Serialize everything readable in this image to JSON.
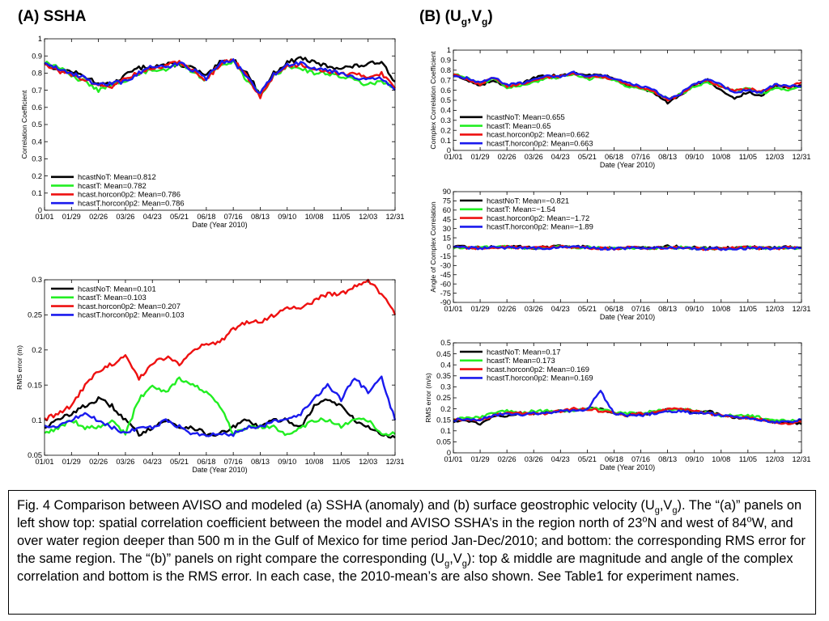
{
  "headings": {
    "a": {
      "text": "(A) SSHA"
    },
    "b": {
      "prefix": "(B) (U",
      "sub1": "g",
      "mid": ",V",
      "sub2": "g",
      "suffix": ")"
    }
  },
  "months": [
    "01/01",
    "01/29",
    "02/26",
    "03/26",
    "04/23",
    "05/21",
    "06/18",
    "07/16",
    "08/13",
    "09/10",
    "10/08",
    "11/05",
    "12/03",
    "12/31"
  ],
  "series_colors": {
    "hcastNoT": "#000000",
    "hcastT": "#22ee22",
    "hcastT.horcon0p2": "#ee1111",
    "hcast.horcon0p2": "#ee1111",
    "hcastT.horcon0p2_blue": "#1a1aee"
  },
  "chart_data": [
    {
      "id": "ssha_corr",
      "type": "line",
      "xlabel": "Date (Year 2010)",
      "ylabel": "Correlation Coefficient",
      "ylim": [
        0,
        1
      ],
      "yticks": [
        "0",
        "0.1",
        "0.2",
        "0.3",
        "0.4",
        "0.5",
        "0.6",
        "0.7",
        "0.8",
        "0.9",
        "1"
      ],
      "legend_position": "bottom-left",
      "x": [
        "01/01",
        "01/15",
        "01/29",
        "02/12",
        "02/26",
        "03/12",
        "03/26",
        "04/09",
        "04/23",
        "05/07",
        "05/21",
        "06/04",
        "06/18",
        "07/02",
        "07/16",
        "07/30",
        "08/13",
        "08/27",
        "09/10",
        "09/24",
        "10/08",
        "10/22",
        "11/05",
        "11/19",
        "12/03",
        "12/17",
        "12/31"
      ],
      "series": [
        {
          "name": "hcastNoT: Mean=0.812",
          "color": "#000000",
          "values": [
            0.86,
            0.82,
            0.81,
            0.78,
            0.74,
            0.73,
            0.79,
            0.83,
            0.84,
            0.85,
            0.85,
            0.83,
            0.78,
            0.86,
            0.88,
            0.8,
            0.68,
            0.8,
            0.86,
            0.89,
            0.86,
            0.84,
            0.83,
            0.84,
            0.85,
            0.87,
            0.75
          ]
        },
        {
          "name": "hcastT: Mean=0.782",
          "color": "#22ee22",
          "values": [
            0.86,
            0.84,
            0.78,
            0.75,
            0.7,
            0.73,
            0.76,
            0.79,
            0.82,
            0.81,
            0.86,
            0.81,
            0.76,
            0.85,
            0.87,
            0.76,
            0.67,
            0.78,
            0.84,
            0.83,
            0.8,
            0.8,
            0.78,
            0.76,
            0.73,
            0.75,
            0.72
          ]
        },
        {
          "name": "hcast.horcon0p2: Mean=0.786",
          "color": "#ee1111",
          "values": [
            0.86,
            0.81,
            0.79,
            0.76,
            0.73,
            0.72,
            0.77,
            0.8,
            0.83,
            0.84,
            0.87,
            0.81,
            0.76,
            0.85,
            0.88,
            0.78,
            0.66,
            0.79,
            0.84,
            0.85,
            0.83,
            0.81,
            0.8,
            0.79,
            0.78,
            0.8,
            0.71
          ]
        },
        {
          "name": "hcastT.horcon0p2: Mean=0.786",
          "color": "#1a1aee",
          "values": [
            0.86,
            0.83,
            0.8,
            0.77,
            0.73,
            0.74,
            0.75,
            0.8,
            0.84,
            0.83,
            0.86,
            0.82,
            0.77,
            0.86,
            0.87,
            0.78,
            0.68,
            0.79,
            0.85,
            0.86,
            0.83,
            0.82,
            0.8,
            0.78,
            0.76,
            0.77,
            0.7
          ]
        }
      ]
    },
    {
      "id": "ssha_rms",
      "type": "line",
      "xlabel": "Date (Year 2010)",
      "ylabel": "RMS error (m)",
      "ylim": [
        0.05,
        0.3
      ],
      "yticks": [
        "0.05",
        "0.1",
        "0.15",
        "0.2",
        "0.25",
        "0.3"
      ],
      "legend_position": "top-left",
      "x": [
        "01/01",
        "01/15",
        "01/29",
        "02/12",
        "02/26",
        "03/12",
        "03/26",
        "04/09",
        "04/23",
        "05/07",
        "05/21",
        "06/04",
        "06/18",
        "07/02",
        "07/16",
        "07/30",
        "08/13",
        "08/27",
        "09/10",
        "09/24",
        "10/08",
        "10/22",
        "11/05",
        "11/19",
        "12/03",
        "12/17",
        "12/31"
      ],
      "series": [
        {
          "name": "hcastNoT: Mean=0.101",
          "color": "#000000",
          "values": [
            0.09,
            0.1,
            0.11,
            0.12,
            0.13,
            0.12,
            0.1,
            0.08,
            0.09,
            0.1,
            0.09,
            0.09,
            0.08,
            0.08,
            0.09,
            0.1,
            0.09,
            0.1,
            0.1,
            0.09,
            0.12,
            0.13,
            0.12,
            0.1,
            0.09,
            0.08,
            0.075
          ]
        },
        {
          "name": "hcastT: Mean=0.103",
          "color": "#22ee22",
          "values": [
            0.08,
            0.09,
            0.1,
            0.09,
            0.09,
            0.1,
            0.08,
            0.13,
            0.15,
            0.14,
            0.16,
            0.15,
            0.14,
            0.12,
            0.08,
            0.09,
            0.09,
            0.09,
            0.08,
            0.09,
            0.1,
            0.1,
            0.09,
            0.1,
            0.1,
            0.08,
            0.08
          ]
        },
        {
          "name": "hcast.horcon0p2: Mean=0.207",
          "color": "#ee1111",
          "values": [
            0.1,
            0.11,
            0.12,
            0.15,
            0.17,
            0.18,
            0.19,
            0.16,
            0.18,
            0.19,
            0.18,
            0.2,
            0.21,
            0.21,
            0.23,
            0.24,
            0.24,
            0.25,
            0.26,
            0.26,
            0.27,
            0.28,
            0.28,
            0.29,
            0.3,
            0.28,
            0.25
          ]
        },
        {
          "name": "hcastT.horcon0p2: Mean=0.103",
          "color": "#1a1aee",
          "values": [
            0.09,
            0.09,
            0.1,
            0.11,
            0.1,
            0.09,
            0.08,
            0.09,
            0.09,
            0.1,
            0.09,
            0.08,
            0.08,
            0.08,
            0.08,
            0.09,
            0.09,
            0.1,
            0.1,
            0.11,
            0.13,
            0.15,
            0.13,
            0.16,
            0.14,
            0.16,
            0.1
          ]
        }
      ]
    },
    {
      "id": "vel_corr",
      "type": "line",
      "xlabel": "Date (Year 2010)",
      "ylabel": "Complex Correlation Coefficient",
      "ylim": [
        0,
        1
      ],
      "yticks": [
        "0",
        "0.1",
        "0.2",
        "0.3",
        "0.4",
        "0.5",
        "0.6",
        "0.7",
        "0.8",
        "0.9",
        "1"
      ],
      "legend_position": "bottom-left",
      "x": [
        "01/01",
        "01/15",
        "01/29",
        "02/12",
        "02/26",
        "03/12",
        "03/26",
        "04/09",
        "04/23",
        "05/07",
        "05/21",
        "06/04",
        "06/18",
        "07/02",
        "07/16",
        "07/30",
        "08/13",
        "08/27",
        "09/10",
        "09/24",
        "10/08",
        "10/22",
        "11/05",
        "11/19",
        "12/03",
        "12/17",
        "12/31"
      ],
      "series": [
        {
          "name": "hcastNoT: Mean=0.655",
          "color": "#000000",
          "values": [
            0.76,
            0.7,
            0.64,
            0.7,
            0.64,
            0.66,
            0.72,
            0.75,
            0.74,
            0.77,
            0.76,
            0.75,
            0.72,
            0.65,
            0.62,
            0.58,
            0.47,
            0.55,
            0.65,
            0.7,
            0.6,
            0.52,
            0.58,
            0.54,
            0.64,
            0.63,
            0.65
          ]
        },
        {
          "name": "hcastT: Mean=0.65",
          "color": "#22ee22",
          "values": [
            0.76,
            0.72,
            0.66,
            0.72,
            0.62,
            0.65,
            0.68,
            0.72,
            0.73,
            0.76,
            0.71,
            0.73,
            0.7,
            0.64,
            0.62,
            0.58,
            0.52,
            0.56,
            0.64,
            0.68,
            0.64,
            0.6,
            0.62,
            0.56,
            0.62,
            0.6,
            0.63
          ]
        },
        {
          "name": "hcast.horcon0p2: Mean=0.662",
          "color": "#ee1111",
          "values": [
            0.75,
            0.71,
            0.66,
            0.73,
            0.64,
            0.66,
            0.7,
            0.73,
            0.74,
            0.77,
            0.73,
            0.74,
            0.71,
            0.66,
            0.63,
            0.59,
            0.5,
            0.56,
            0.66,
            0.7,
            0.64,
            0.6,
            0.62,
            0.58,
            0.65,
            0.63,
            0.68
          ]
        },
        {
          "name": "hcastT.horcon0p2: Mean=0.663",
          "color": "#1a1aee",
          "values": [
            0.74,
            0.72,
            0.67,
            0.73,
            0.65,
            0.67,
            0.7,
            0.74,
            0.74,
            0.78,
            0.74,
            0.75,
            0.72,
            0.67,
            0.64,
            0.6,
            0.51,
            0.57,
            0.66,
            0.71,
            0.65,
            0.58,
            0.6,
            0.57,
            0.66,
            0.64,
            0.64
          ]
        }
      ]
    },
    {
      "id": "vel_angle",
      "type": "line",
      "xlabel": "Date (Year 2010)",
      "ylabel": "Angle of Complex Correlation",
      "ylim": [
        -90,
        90
      ],
      "yticks": [
        "90",
        "75",
        "60",
        "45",
        "30",
        "15",
        "0",
        "-15",
        "-30",
        "-45",
        "-60",
        "-75",
        "-90"
      ],
      "legend_position": "top-left",
      "x": [
        "01/01",
        "01/15",
        "01/29",
        "02/12",
        "02/26",
        "03/12",
        "03/26",
        "04/09",
        "04/23",
        "05/07",
        "05/21",
        "06/04",
        "06/18",
        "07/02",
        "07/16",
        "07/30",
        "08/13",
        "08/27",
        "09/10",
        "09/24",
        "10/08",
        "10/22",
        "11/05",
        "11/19",
        "12/03",
        "12/17",
        "12/31"
      ],
      "series": [
        {
          "name": "hcastNoT: Mean=−0.821",
          "color": "#000000",
          "values": [
            0,
            0,
            -1,
            0,
            1,
            0,
            -1,
            0,
            1,
            1,
            0,
            -1,
            -2,
            0,
            -1,
            -1,
            1,
            0,
            -1,
            -2,
            -2,
            -1,
            0,
            -1,
            -1,
            0,
            -1
          ]
        },
        {
          "name": "hcastT: Mean=−1.54",
          "color": "#22ee22",
          "values": [
            -1,
            -1,
            -1,
            0,
            0,
            -1,
            -1,
            -1,
            0,
            0,
            -1,
            -2,
            -2,
            -1,
            -1,
            -2,
            -1,
            -1,
            -2,
            -3,
            -2,
            -2,
            -1,
            -2,
            -2,
            -1,
            -2
          ]
        },
        {
          "name": "hcast.horcon0p2: Mean=−1.72",
          "color": "#ee1111",
          "values": [
            -1,
            -1,
            -2,
            -1,
            0,
            -1,
            -2,
            -1,
            0,
            0,
            -1,
            -2,
            -3,
            -1,
            -2,
            -2,
            -1,
            -1,
            -2,
            -3,
            -3,
            -2,
            -1,
            -2,
            -2,
            -1,
            -2
          ]
        },
        {
          "name": "hcastT.horcon0p2: Mean=−1.89",
          "color": "#1a1aee",
          "values": [
            -1,
            -1,
            -2,
            -1,
            -1,
            -1,
            -2,
            -2,
            -1,
            0,
            -1,
            -2,
            -3,
            -2,
            -2,
            -2,
            -1,
            -2,
            -2,
            -3,
            -3,
            -2,
            -2,
            -2,
            -2,
            -1,
            -2
          ]
        }
      ]
    },
    {
      "id": "vel_rms",
      "type": "line",
      "xlabel": "Date (Year 2010)",
      "ylabel": "RMS error (m/s)",
      "ylim": [
        0,
        0.5
      ],
      "yticks": [
        "0",
        "0.05",
        "0.1",
        "0.15",
        "0.2",
        "0.25",
        "0.3",
        "0.35",
        "0.4",
        "0.45",
        "0.5"
      ],
      "legend_position": "top-left",
      "x": [
        "01/01",
        "01/15",
        "01/29",
        "02/12",
        "02/26",
        "03/12",
        "03/26",
        "04/09",
        "04/23",
        "05/07",
        "05/21",
        "06/04",
        "06/18",
        "07/02",
        "07/16",
        "07/30",
        "08/13",
        "08/27",
        "09/10",
        "09/24",
        "10/08",
        "10/22",
        "11/05",
        "11/19",
        "12/03",
        "12/17",
        "12/31"
      ],
      "series": [
        {
          "name": "hcastNoT: Mean=0.17",
          "color": "#000000",
          "values": [
            0.14,
            0.15,
            0.13,
            0.17,
            0.17,
            0.18,
            0.18,
            0.18,
            0.19,
            0.19,
            0.2,
            0.2,
            0.18,
            0.17,
            0.18,
            0.18,
            0.2,
            0.2,
            0.18,
            0.19,
            0.17,
            0.16,
            0.16,
            0.15,
            0.14,
            0.14,
            0.13
          ]
        },
        {
          "name": "hcastT: Mean=0.173",
          "color": "#22ee22",
          "values": [
            0.15,
            0.16,
            0.16,
            0.18,
            0.19,
            0.18,
            0.19,
            0.19,
            0.19,
            0.19,
            0.2,
            0.2,
            0.18,
            0.18,
            0.18,
            0.19,
            0.19,
            0.2,
            0.19,
            0.18,
            0.17,
            0.17,
            0.17,
            0.16,
            0.15,
            0.15,
            0.14
          ]
        },
        {
          "name": "hcast.horcon0p2: Mean=0.169",
          "color": "#ee1111",
          "values": [
            0.15,
            0.15,
            0.15,
            0.17,
            0.18,
            0.18,
            0.18,
            0.18,
            0.19,
            0.2,
            0.2,
            0.19,
            0.18,
            0.17,
            0.18,
            0.18,
            0.2,
            0.2,
            0.19,
            0.18,
            0.17,
            0.16,
            0.16,
            0.15,
            0.14,
            0.13,
            0.14
          ]
        },
        {
          "name": "hcastT.horcon0p2: Mean=0.169",
          "color": "#1a1aee",
          "values": [
            0.15,
            0.15,
            0.15,
            0.17,
            0.18,
            0.17,
            0.18,
            0.18,
            0.19,
            0.19,
            0.2,
            0.28,
            0.18,
            0.17,
            0.17,
            0.18,
            0.19,
            0.19,
            0.18,
            0.18,
            0.17,
            0.16,
            0.16,
            0.15,
            0.14,
            0.14,
            0.15
          ]
        }
      ]
    }
  ],
  "caption": {
    "p1": "Fig. 4 Comparison between AVISO and modeled (a) SSHA (anomaly) and (b) surface geostrophic velocity (U",
    "s1": "g",
    "p2": ",V",
    "s2": "g",
    "p3": "). The “(a)” panels on left show top: spatial correlation coefficient between the model and AVISO SSHA’s in the region north of 23",
    "sup1": "o",
    "p4": "N and west of 84",
    "sup2": "o",
    "p5": "W, and over water region deeper than 500 m in the Gulf of Mexico for time period Jan-Dec/2010; and bottom: the corresponding RMS error for the same region.  The “(b)” panels on right compare the corresponding (U",
    "s3": "g",
    "p6": ",V",
    "s4": "g",
    "p7": "): top & middle are magnitude and angle of the complex correlation and bottom is the RMS error.  In each case, the 2010-mean’s are also shown. See Table1 for experiment names."
  }
}
